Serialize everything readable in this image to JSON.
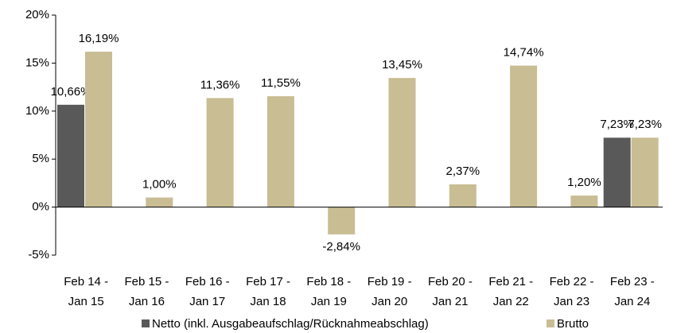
{
  "chart_data": {
    "type": "bar",
    "categories": [
      "Feb 14 - Jan 15",
      "Feb 15 - Jan 16",
      "Feb 16 - Jan 17",
      "Feb 17 - Jan 18",
      "Feb 18 - Jan 19",
      "Feb 19 - Jan 20",
      "Feb 20 - Jan 21",
      "Feb 21 - Jan 22",
      "Feb 22 - Jan 23",
      "Feb 23 - Jan 24"
    ],
    "series": [
      {
        "name": "Netto (inkl. Ausgabeaufschlag/Rücknahmeabschlag)",
        "color": "#595959",
        "values": [
          10.66,
          null,
          null,
          null,
          null,
          null,
          null,
          null,
          null,
          7.23
        ],
        "value_labels": [
          "10,66%",
          null,
          null,
          null,
          null,
          null,
          null,
          null,
          null,
          "7,23%"
        ]
      },
      {
        "name": "Brutto",
        "color": "#c8bd93",
        "values": [
          16.19,
          1.0,
          11.36,
          11.55,
          -2.84,
          13.45,
          2.37,
          14.74,
          1.2,
          7.23
        ],
        "value_labels": [
          "16,19%",
          "1,00%",
          "11,36%",
          "11,55%",
          "-2,84%",
          "13,45%",
          "2,37%",
          "14,74%",
          "1,20%",
          "7,23%"
        ]
      }
    ],
    "ylim": [
      -5,
      20
    ],
    "yticks": [
      {
        "value": -5,
        "label": "-5%"
      },
      {
        "value": 0,
        "label": "0%"
      },
      {
        "value": 5,
        "label": "5%"
      },
      {
        "value": 10,
        "label": "10%"
      },
      {
        "value": 15,
        "label": "15%"
      },
      {
        "value": 20,
        "label": "20%"
      }
    ],
    "grid": false,
    "legend": "bottom"
  }
}
